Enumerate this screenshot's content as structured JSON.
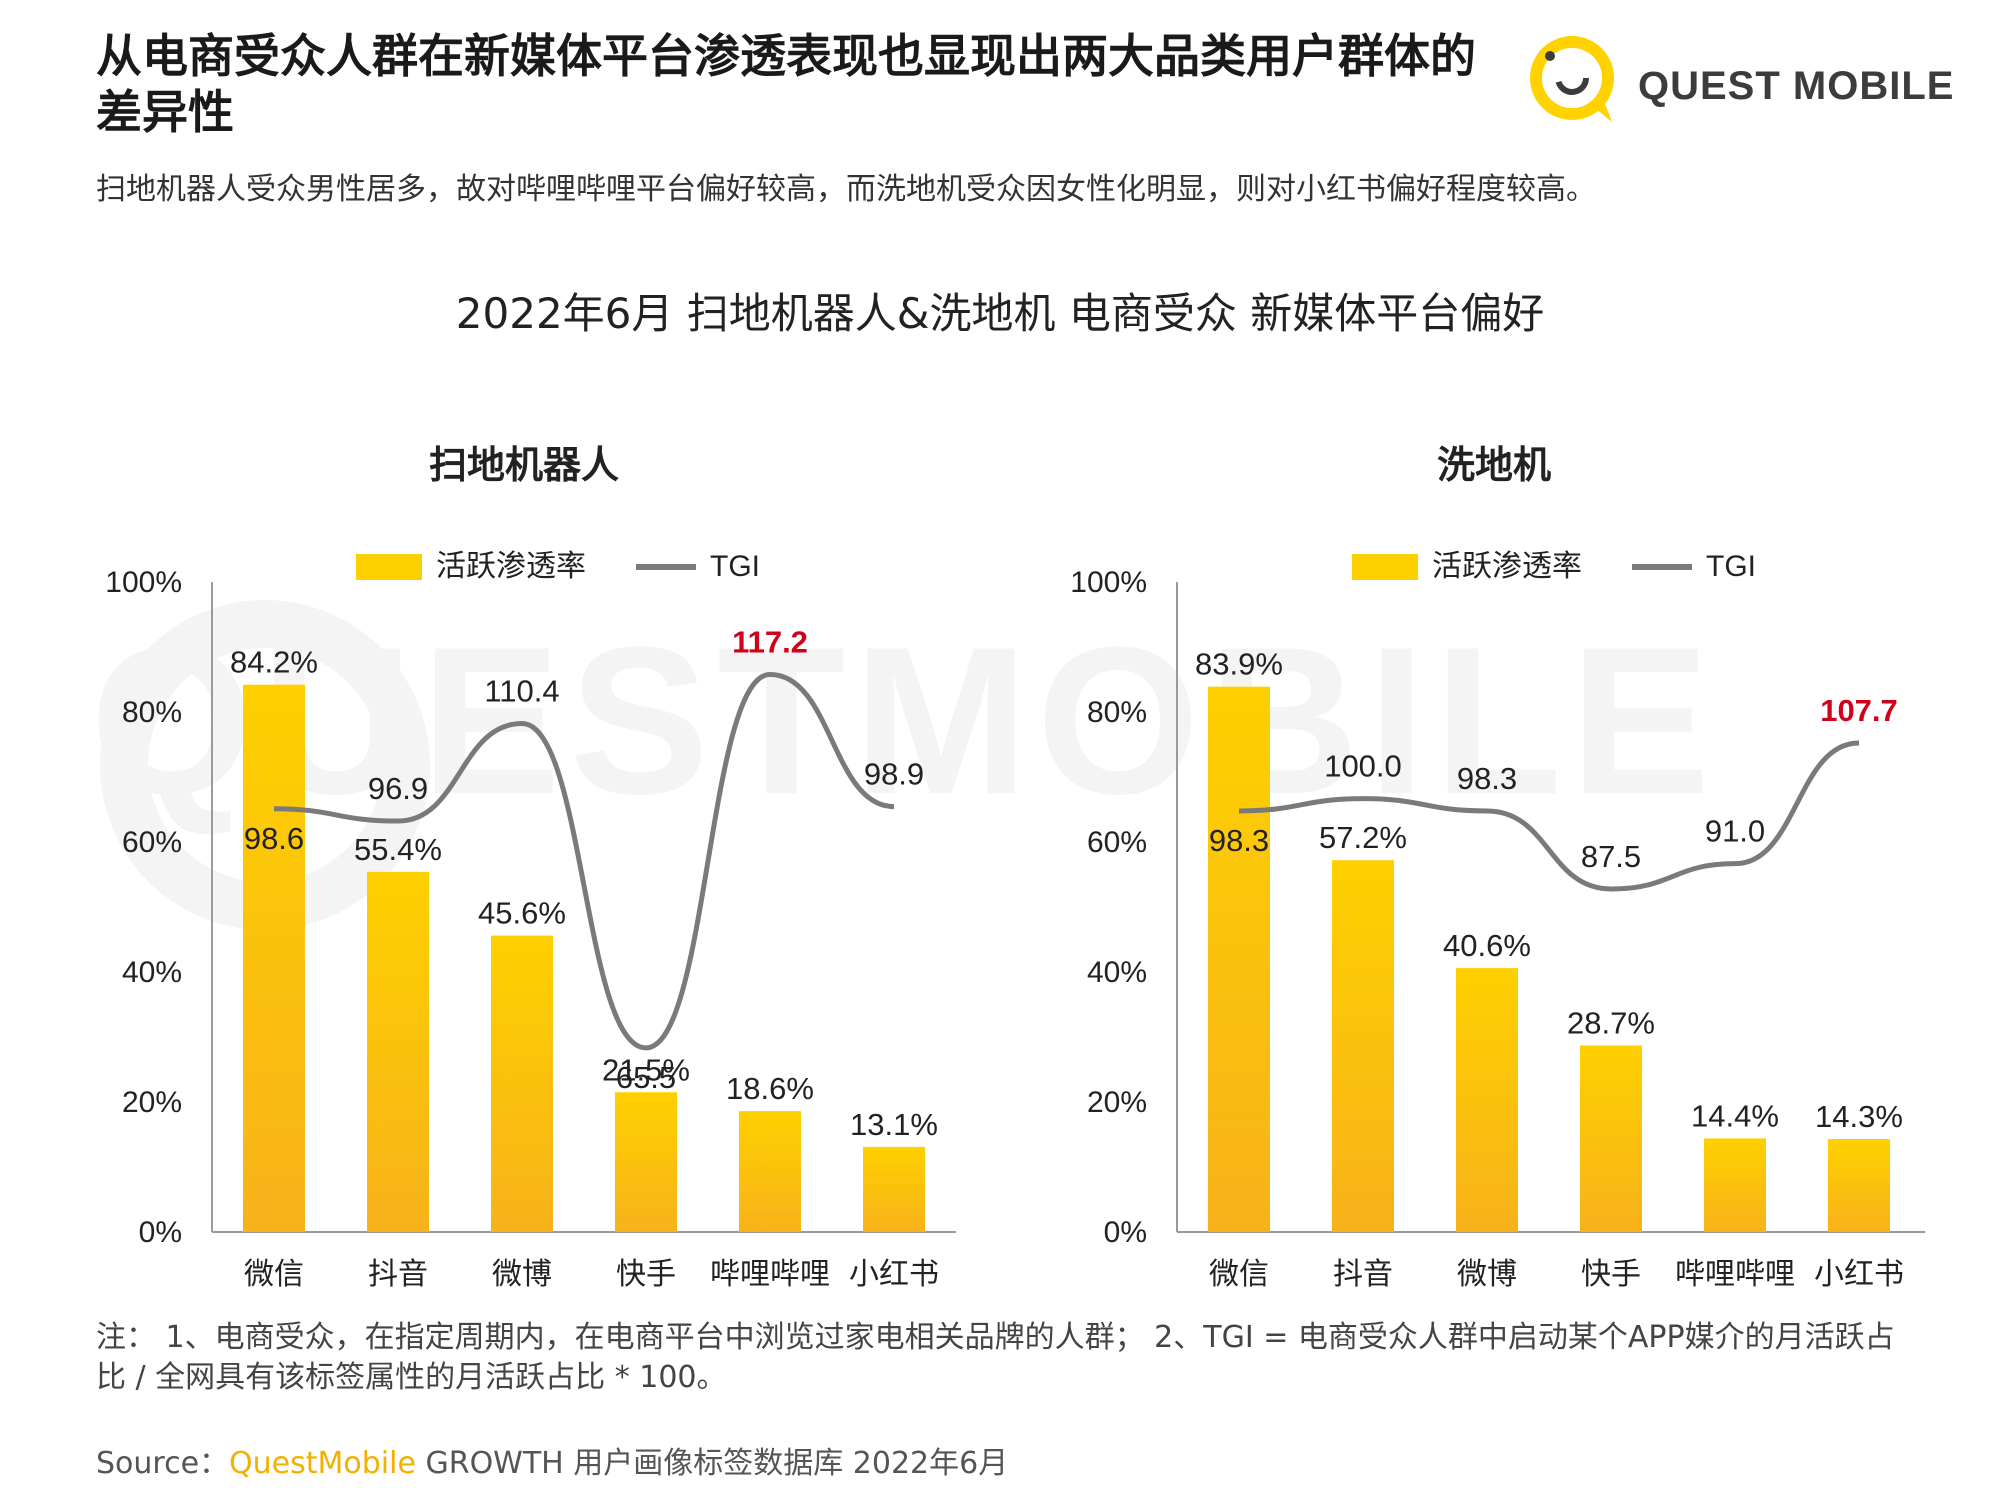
{
  "header": {
    "title": "从电商受众人群在新媒体平台渗透表现也显现出两大品类用户群体的差异性",
    "subtitle": "扫地机器人受众男性居多，故对哔哩哔哩平台偏好较高，而洗地机受众因女性化明显，则对小红书偏好程度较高。"
  },
  "logo": {
    "text": "QUEST MOBILE",
    "watermark": "QUESTMOBILE"
  },
  "main_title": "2022年6月 扫地机器人&洗地机 电商受众 新媒体平台偏好",
  "colors": {
    "bar_top": "#ffd000",
    "bar_bottom": "#f7b21a",
    "line": "#7a7a7a",
    "highlight": "#d0021b"
  },
  "chart_data": [
    {
      "type": "bar",
      "title": "扫地机器人",
      "categories": [
        "微信",
        "抖音",
        "微博",
        "快手",
        "哔哩哔哩",
        "小红书"
      ],
      "ylim": [
        0,
        100
      ],
      "yticks": [
        "0%",
        "20%",
        "40%",
        "60%",
        "80%",
        "100%"
      ],
      "legend": [
        "活跃渗透率",
        "TGI"
      ],
      "legend_position": "top",
      "series": [
        {
          "name": "活跃渗透率",
          "type": "bar",
          "values": [
            84.2,
            55.4,
            45.6,
            21.5,
            18.6,
            13.1
          ],
          "labels": [
            "84.2%",
            "55.4%",
            "45.6%",
            "21.5%",
            "18.6%",
            "13.1%"
          ]
        },
        {
          "name": "TGI",
          "type": "line",
          "values": [
            98.6,
            96.9,
            110.4,
            65.5,
            117.2,
            98.9
          ],
          "labels": [
            "98.6",
            "96.9",
            "110.4",
            "65.5",
            "117.2",
            "98.9"
          ],
          "highlight_index": 4
        }
      ]
    },
    {
      "type": "bar",
      "title": "洗地机",
      "categories": [
        "微信",
        "抖音",
        "微博",
        "快手",
        "哔哩哔哩",
        "小红书"
      ],
      "ylim": [
        0,
        100
      ],
      "yticks": [
        "0%",
        "20%",
        "40%",
        "60%",
        "80%",
        "100%"
      ],
      "legend": [
        "活跃渗透率",
        "TGI"
      ],
      "legend_position": "top",
      "series": [
        {
          "name": "活跃渗透率",
          "type": "bar",
          "values": [
            83.9,
            57.2,
            40.6,
            28.7,
            14.4,
            14.3
          ],
          "labels": [
            "83.9%",
            "57.2%",
            "40.6%",
            "28.7%",
            "14.4%",
            "14.3%"
          ]
        },
        {
          "name": "TGI",
          "type": "line",
          "values": [
            98.3,
            100.0,
            98.3,
            87.5,
            91.0,
            107.7
          ],
          "labels": [
            "98.3",
            "100.0",
            "98.3",
            "87.5",
            "91.0",
            "107.7"
          ],
          "highlight_index": 5
        }
      ]
    }
  ],
  "footer": {
    "note": "注： 1、电商受众，在指定周期内，在电商平台中浏览过家电相关品牌的人群； 2、TGI = 电商受众人群中启动某个APP媒介的月活跃占比 / 全网具有该标签属性的月活跃占比 * 100。",
    "source_prefix": "Source：",
    "source_brand": "QuestMobile",
    "source_rest": " GROWTH 用户画像标签数据库 2022年6月"
  }
}
